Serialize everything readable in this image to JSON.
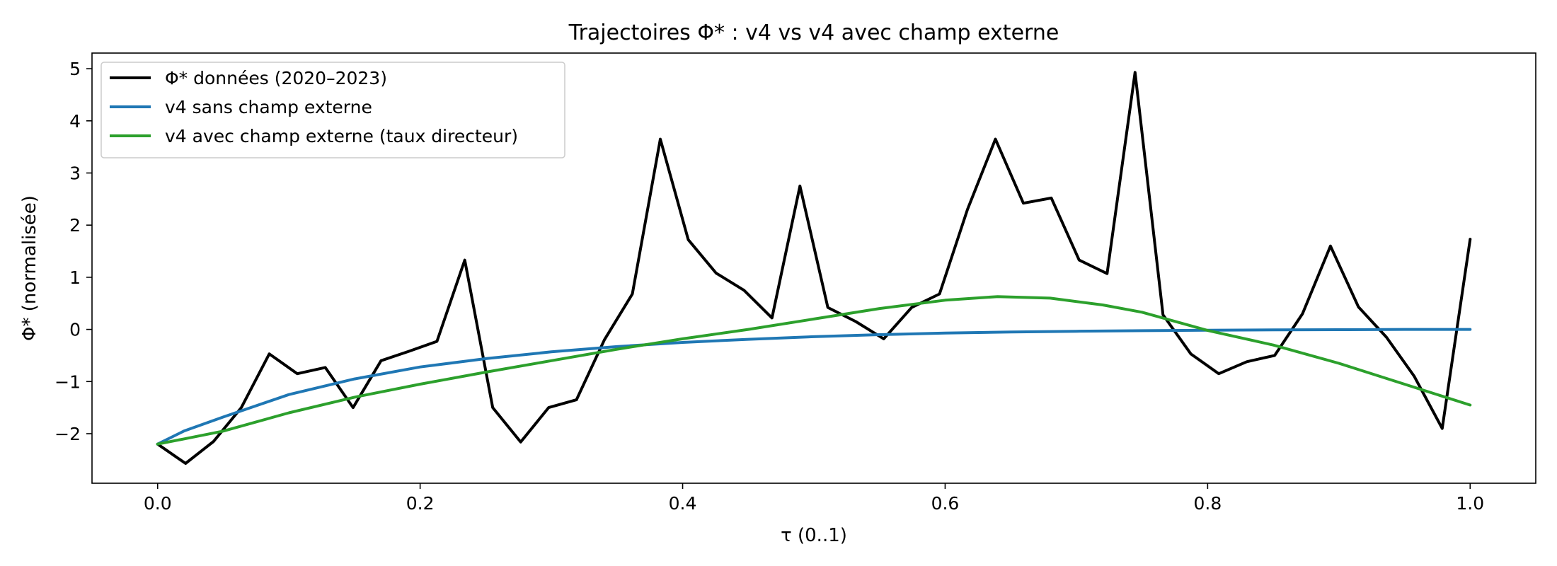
{
  "chart_data": {
    "type": "line",
    "title": "Trajectoires Φ* : v4 vs v4 avec champ externe",
    "xlabel": "τ (0..1)",
    "ylabel": "Φ* (normalisée)",
    "xlim": [
      -0.05,
      1.05
    ],
    "ylim": [
      -2.95,
      5.3
    ],
    "xticks": [
      0.0,
      0.2,
      0.4,
      0.6,
      0.8,
      1.0
    ],
    "xtick_labels": [
      "0.0",
      "0.2",
      "0.4",
      "0.6",
      "0.8",
      "1.0"
    ],
    "yticks": [
      -2,
      -1,
      0,
      1,
      2,
      3,
      4,
      5
    ],
    "ytick_labels": [
      "−2",
      "−1",
      "0",
      "1",
      "2",
      "3",
      "4",
      "5"
    ],
    "grid": false,
    "legend_position": "top-left",
    "series": [
      {
        "name": "Φ* données (2020–2023)",
        "color": "#000000",
        "x": [
          0.0,
          0.0213,
          0.0426,
          0.0638,
          0.0851,
          0.1064,
          0.1277,
          0.1489,
          0.1702,
          0.1915,
          0.2128,
          0.234,
          0.2553,
          0.2766,
          0.2979,
          0.3191,
          0.3404,
          0.3617,
          0.383,
          0.4043,
          0.4255,
          0.4468,
          0.4681,
          0.4894,
          0.5106,
          0.5319,
          0.5532,
          0.5745,
          0.5957,
          0.617,
          0.6383,
          0.6596,
          0.6809,
          0.7021,
          0.7234,
          0.7447,
          0.766,
          0.7872,
          0.8085,
          0.8298,
          0.8511,
          0.8723,
          0.8936,
          0.9149,
          0.9362,
          0.9574,
          0.9787,
          1.0
        ],
        "y": [
          -2.2,
          -2.57,
          -2.15,
          -1.5,
          -0.47,
          -0.85,
          -0.73,
          -1.5,
          -0.6,
          -0.42,
          -0.23,
          1.33,
          -1.5,
          -2.16,
          -1.5,
          -1.35,
          -0.2,
          0.68,
          3.65,
          1.72,
          1.08,
          0.75,
          0.22,
          2.75,
          0.42,
          0.15,
          -0.18,
          0.42,
          0.68,
          2.3,
          3.65,
          2.42,
          2.52,
          1.33,
          1.07,
          4.93,
          0.28,
          -0.47,
          -0.85,
          -0.62,
          -0.5,
          0.3,
          1.6,
          0.43,
          -0.15,
          -0.9,
          -1.9,
          1.73
        ]
      },
      {
        "name": "v4 sans champ externe",
        "color": "#1f77b4",
        "x": [
          0.0,
          0.02,
          0.05,
          0.1,
          0.15,
          0.2,
          0.25,
          0.3,
          0.35,
          0.4,
          0.45,
          0.5,
          0.55,
          0.6,
          0.65,
          0.7,
          0.75,
          0.8,
          0.85,
          0.9,
          0.95,
          1.0
        ],
        "y": [
          -2.2,
          -1.95,
          -1.68,
          -1.25,
          -0.95,
          -0.72,
          -0.56,
          -0.43,
          -0.33,
          -0.25,
          -0.19,
          -0.14,
          -0.1,
          -0.07,
          -0.05,
          -0.035,
          -0.025,
          -0.015,
          -0.01,
          -0.005,
          0.0,
          0.0
        ]
      },
      {
        "name": "v4 avec champ externe (taux directeur)",
        "color": "#2ca02c",
        "x": [
          0.0,
          0.02,
          0.05,
          0.1,
          0.15,
          0.2,
          0.25,
          0.3,
          0.35,
          0.4,
          0.45,
          0.5,
          0.55,
          0.6,
          0.64,
          0.68,
          0.72,
          0.75,
          0.8,
          0.85,
          0.9,
          0.95,
          1.0
        ],
        "y": [
          -2.2,
          -2.1,
          -1.95,
          -1.6,
          -1.3,
          -1.05,
          -0.82,
          -0.6,
          -0.38,
          -0.18,
          0.0,
          0.2,
          0.4,
          0.56,
          0.63,
          0.6,
          0.47,
          0.33,
          -0.02,
          -0.3,
          -0.65,
          -1.05,
          -1.45
        ]
      }
    ]
  }
}
